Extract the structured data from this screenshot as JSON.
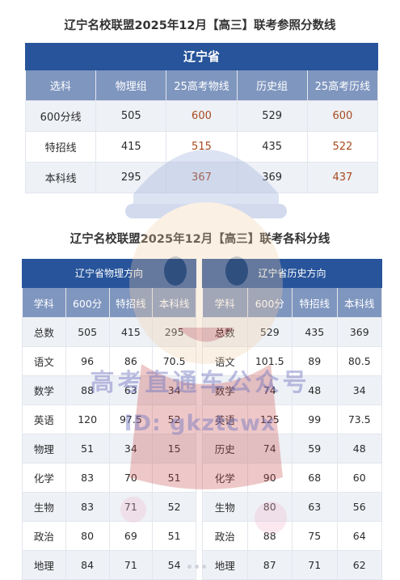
{
  "title1": "辽宁名校联盟2025年12月【高三】联考参照分数线",
  "table1": {
    "province": "辽宁省",
    "headers": [
      "选科",
      "物理组",
      "25高考物线",
      "历史组",
      "25高考历线"
    ],
    "rows": [
      [
        "600分线",
        "505",
        "600",
        "529",
        "600"
      ],
      [
        "特招线",
        "415",
        "515",
        "435",
        "522"
      ],
      [
        "本科线",
        "295",
        "367",
        "369",
        "437"
      ]
    ]
  },
  "title2": "辽宁名校联盟2025年12月【高三】联考各科分线",
  "table2": {
    "left": {
      "head": "辽宁省物理方向",
      "columns": [
        "学科",
        "600分",
        "特招线",
        "本科线"
      ],
      "rows": [
        [
          "总数",
          "505",
          "415",
          "295"
        ],
        [
          "语文",
          "96",
          "86",
          "70.5"
        ],
        [
          "数学",
          "88",
          "63",
          "34"
        ],
        [
          "英语",
          "120",
          "97.5",
          "52"
        ],
        [
          "物理",
          "51",
          "34",
          "15"
        ],
        [
          "化学",
          "83",
          "70",
          "51"
        ],
        [
          "生物",
          "83",
          "71",
          "52"
        ],
        [
          "政治",
          "80",
          "69",
          "51"
        ],
        [
          "地理",
          "84",
          "71",
          "54"
        ]
      ]
    },
    "right": {
      "head": "辽宁省历史方向",
      "columns": [
        "学科",
        "600分",
        "特招线",
        "本科线"
      ],
      "rows": [
        [
          "总数",
          "529",
          "435",
          "369"
        ],
        [
          "语文",
          "101.5",
          "89",
          "80.5"
        ],
        [
          "数学",
          "74",
          "48",
          "34"
        ],
        [
          "英语",
          "125",
          "99",
          "73.5"
        ],
        [
          "历史",
          "74",
          "59",
          "48"
        ],
        [
          "化学",
          "90",
          "68",
          "60"
        ],
        [
          "生物",
          "80",
          "63",
          "56"
        ],
        [
          "政治",
          "88",
          "75",
          "64"
        ],
        [
          "地理",
          "87",
          "71",
          "62"
        ]
      ]
    }
  },
  "watermark": {
    "line1": "高考直通车公众号",
    "line2": "ID: gkztcwx"
  },
  "colors": {
    "header_dark": "#27549a",
    "header_light": "#7f96bf",
    "row_alt": "#eef1f6",
    "highlight": "#a84a1e"
  }
}
